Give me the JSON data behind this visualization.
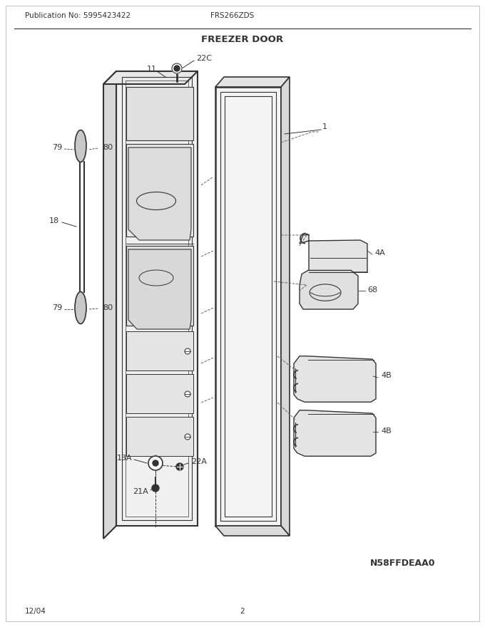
{
  "title": "FREEZER DOOR",
  "pub_no": "Publication No: 5995423422",
  "model": "FRS266ZDS",
  "date": "12/04",
  "page": "2",
  "part_id": "N58FFDEAA0",
  "bg_color": "#ffffff",
  "line_color": "#333333",
  "label_fontsize": 8,
  "title_fontsize": 10,
  "header_fontsize": 8
}
